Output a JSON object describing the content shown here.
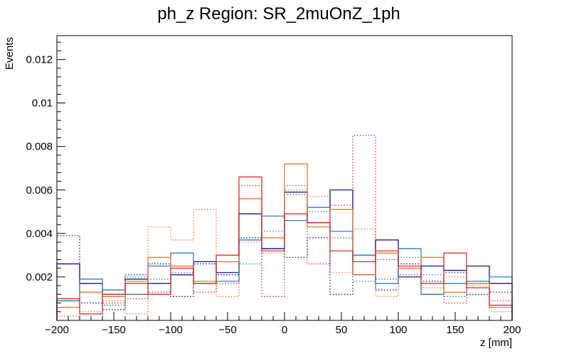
{
  "chart_data": {
    "type": "histogram",
    "title": "ph_z Region: SR_2muOnZ_1ph",
    "xlabel": "z [mm]",
    "ylabel": "Events",
    "xlim": [
      -200,
      200
    ],
    "ylim": [
      0,
      0.0131
    ],
    "bin_edges": [
      -200,
      -180,
      -160,
      -140,
      -120,
      -100,
      -80,
      -60,
      -40,
      -20,
      0,
      20,
      40,
      60,
      80,
      100,
      120,
      140,
      160,
      180,
      200
    ],
    "x_ticks": [
      -200,
      -150,
      -100,
      -50,
      0,
      50,
      100,
      150,
      200
    ],
    "x_tick_labels": [
      "−200",
      "−150",
      "−100",
      "−50",
      "0",
      "50",
      "100",
      "150",
      "200"
    ],
    "y_ticks": [
      0.002,
      0.004,
      0.006,
      0.008,
      0.01,
      0.012
    ],
    "y_tick_labels": [
      "0.002",
      "0.004",
      "0.006",
      "0.008",
      "0.01",
      "0.012"
    ],
    "series": [
      {
        "name": "navy",
        "color": "#000080",
        "style": "solid",
        "values": [
          0.0026,
          0.0017,
          0.0012,
          0.0019,
          0.0017,
          0.0021,
          0.0027,
          0.0022,
          0.0049,
          0.0033,
          0.0059,
          0.0045,
          0.006,
          0.0021,
          0.0037,
          0.002,
          0.0025,
          0.0023,
          0.0025,
          0.0017
        ]
      },
      {
        "name": "blue",
        "color": "#1f6fb5",
        "style": "solid",
        "values": [
          0.0009,
          0.0019,
          0.0014,
          0.0012,
          0.0025,
          0.0031,
          0.0017,
          0.0018,
          0.0037,
          0.0048,
          0.0046,
          0.0052,
          0.0041,
          0.003,
          0.0017,
          0.0033,
          0.0012,
          0.0017,
          0.0018,
          0.002
        ]
      },
      {
        "name": "orange",
        "color": "#ee6a20",
        "style": "solid",
        "values": [
          0.0006,
          0.0013,
          0.0011,
          0.0018,
          0.0029,
          0.0025,
          0.0018,
          0.0027,
          0.0056,
          0.0038,
          0.0072,
          0.0043,
          0.0051,
          0.0021,
          0.0031,
          0.0024,
          0.0029,
          0.0013,
          0.0017,
          0.0006
        ]
      },
      {
        "name": "red",
        "color": "#d42020",
        "style": "solid",
        "values": [
          0.001,
          0.0003,
          0.0012,
          0.0017,
          0.0012,
          0.0024,
          0.0017,
          0.003,
          0.0066,
          0.0032,
          0.0049,
          0.0045,
          0.0032,
          0.0027,
          0.0032,
          0.0025,
          0.0017,
          0.0031,
          0.0015,
          0.0007
        ]
      },
      {
        "name": "navy-dotted",
        "color": "#000080",
        "style": "dotted",
        "values": [
          0.0039,
          0.0008,
          0.0005,
          0.0021,
          0.0026,
          0.0011,
          0.0026,
          0.0021,
          0.0038,
          0.0033,
          0.0029,
          0.0038,
          0.0012,
          0.003,
          0.0014,
          0.0026,
          0.0018,
          0.0022,
          0.0012,
          0.0013
        ]
      },
      {
        "name": "blue-dotted",
        "color": "#1f6fb5",
        "style": "dotted",
        "values": [
          0.0006,
          0.0013,
          0.0007,
          0.002,
          0.0019,
          0.0022,
          0.0017,
          0.0027,
          0.0026,
          0.0041,
          0.0062,
          0.005,
          0.0038,
          0.0018,
          0.0028,
          0.0029,
          0.0021,
          0.0011,
          0.0017,
          0.0007
        ]
      },
      {
        "name": "orange-dotted",
        "color": "#ee6a20",
        "style": "dotted",
        "values": [
          0.0002,
          0.0004,
          0.0009,
          0.0003,
          0.0043,
          0.0037,
          0.0051,
          0.0011,
          0.0036,
          0.0031,
          0.006,
          0.0057,
          0.0022,
          0.0042,
          0.0011,
          0.002,
          0.0015,
          0.002,
          0.0016,
          0.0004
        ]
      },
      {
        "name": "red-dotted",
        "color": "#d42020",
        "style": "dotted",
        "values": [
          0.0009,
          0.0013,
          0.0008,
          0.001,
          0.0013,
          0.0025,
          0.0013,
          0.0017,
          0.0062,
          0.0011,
          0.0058,
          0.0026,
          0.0053,
          0.0085,
          0.0019,
          0.0021,
          0.0012,
          0.0008,
          0.0015,
          0.0009
        ]
      }
    ]
  }
}
